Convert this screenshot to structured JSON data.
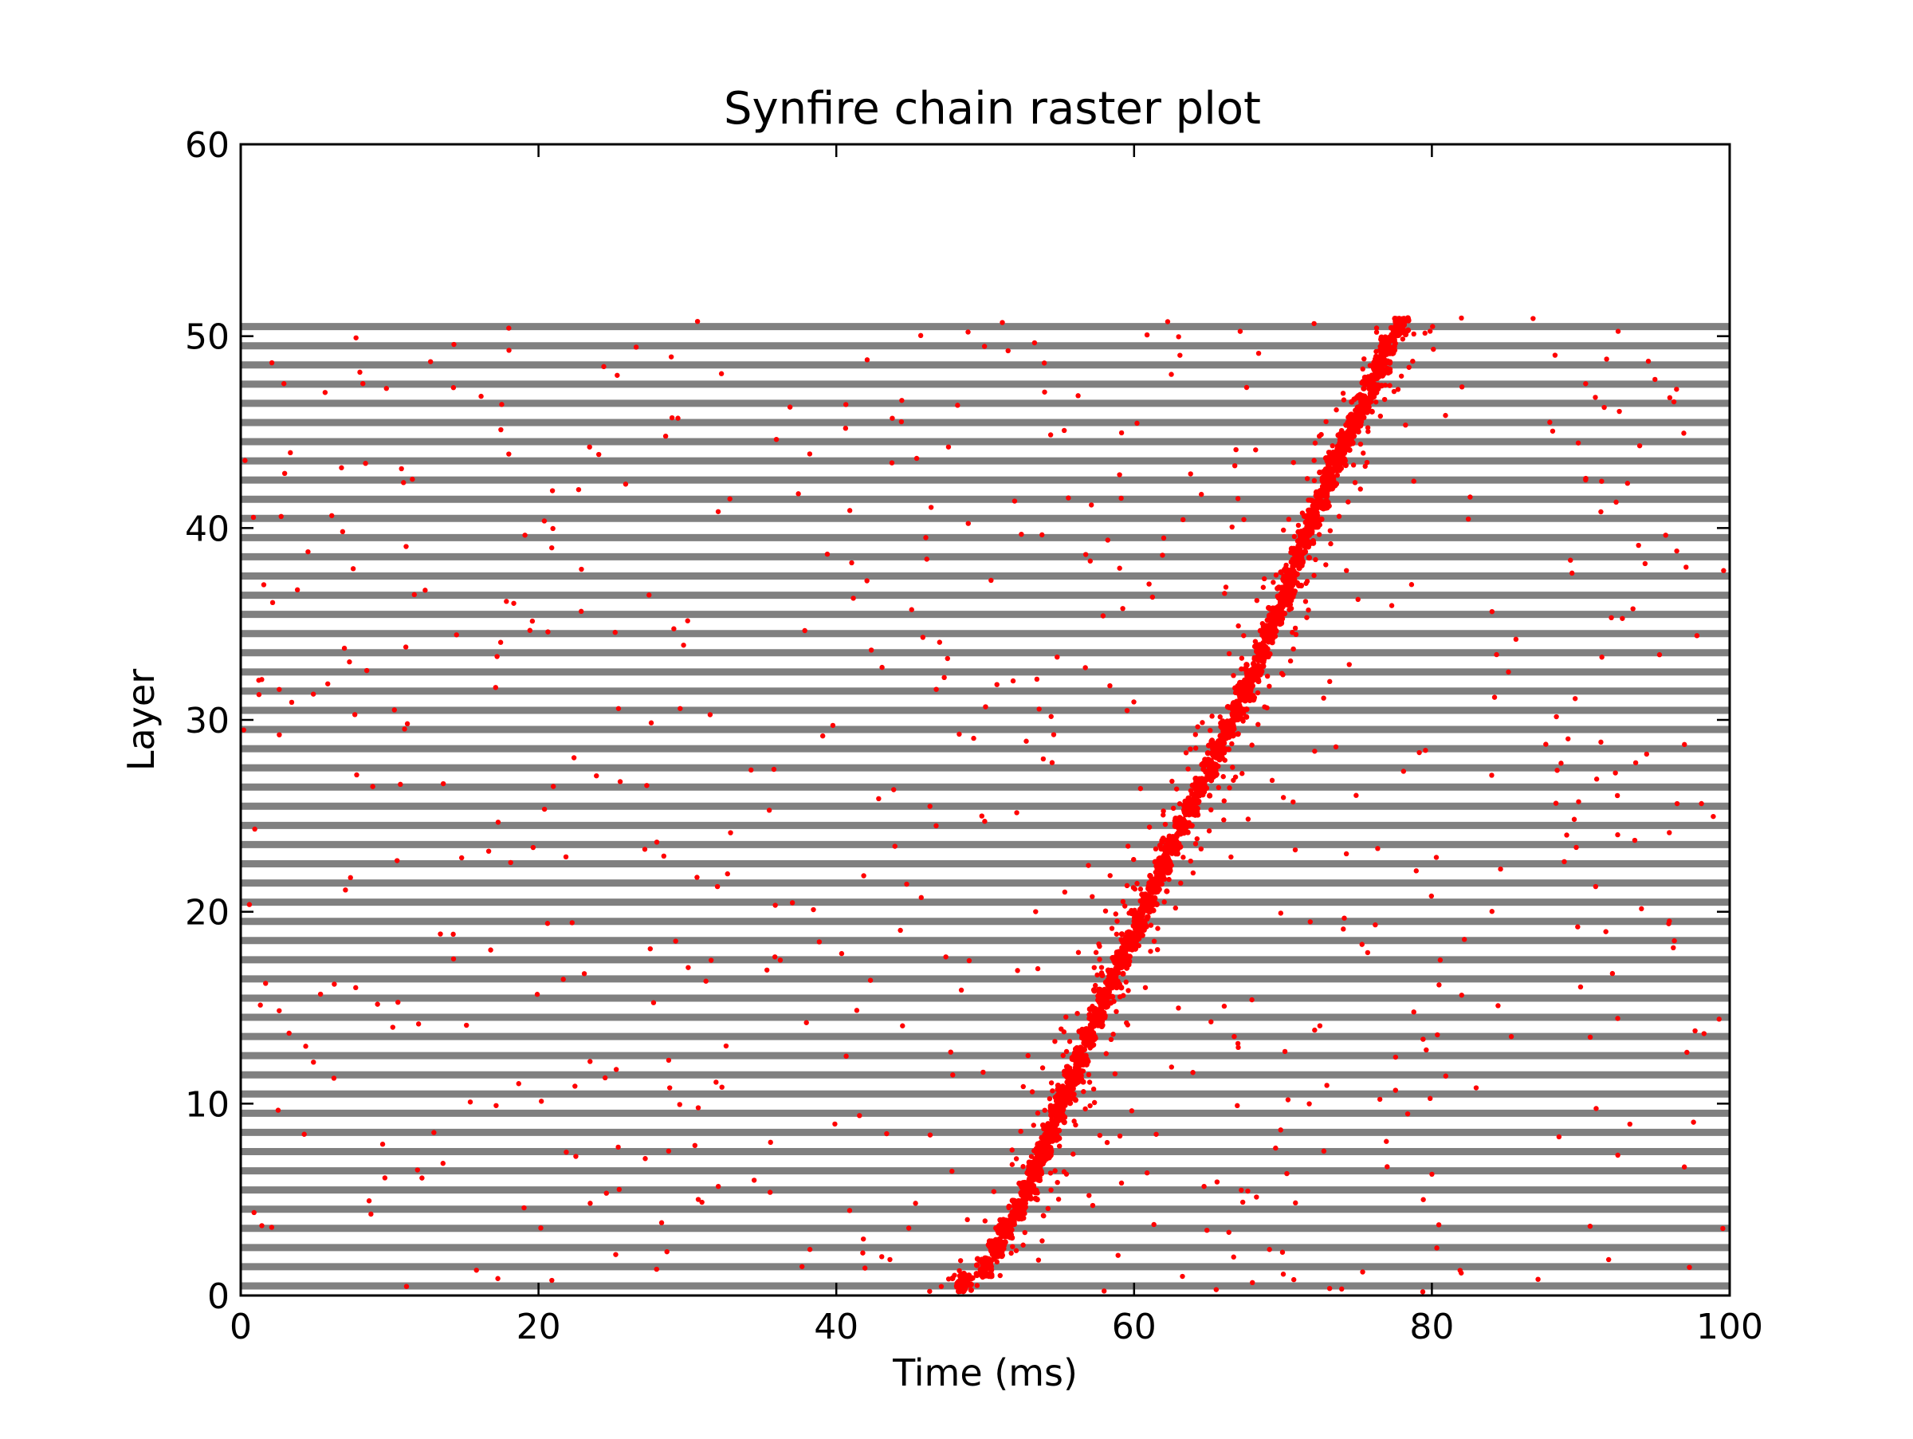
{
  "chart_data": {
    "type": "scatter",
    "title": "Synfire chain raster plot",
    "xlabel": "Time (ms)",
    "ylabel": "Layer",
    "xlim": [
      0,
      100
    ],
    "ylim": [
      0,
      60
    ],
    "xticks": [
      0,
      20,
      40,
      60,
      80,
      100
    ],
    "yticks": [
      0,
      10,
      20,
      30,
      40,
      50
    ],
    "grid": false,
    "legend": "none",
    "layer_bands": {
      "count": 51,
      "from_layer": 0,
      "to_layer": 50,
      "color": "#808080"
    },
    "series": [
      {
        "marker_color": "#ff0000",
        "pulse_points": [
          [
            48.5,
            0.2
          ],
          [
            50.0,
            1.0
          ],
          [
            50.8,
            2.0
          ],
          [
            51.4,
            3.0
          ],
          [
            52.1,
            4.0
          ],
          [
            52.8,
            5.0
          ],
          [
            53.3,
            6.0
          ],
          [
            53.9,
            7.0
          ],
          [
            54.4,
            8.0
          ],
          [
            54.9,
            9.0
          ],
          [
            55.4,
            10.0
          ],
          [
            55.9,
            11.0
          ],
          [
            56.4,
            12.0
          ],
          [
            56.9,
            13.0
          ],
          [
            57.5,
            14.0
          ],
          [
            58.0,
            15.0
          ],
          [
            58.6,
            16.0
          ],
          [
            59.2,
            17.0
          ],
          [
            59.8,
            18.0
          ],
          [
            60.3,
            19.0
          ],
          [
            60.9,
            20.0
          ],
          [
            61.5,
            21.0
          ],
          [
            62.0,
            22.0
          ],
          [
            62.5,
            23.0
          ],
          [
            63.1,
            24.0
          ],
          [
            63.8,
            25.0
          ],
          [
            64.5,
            26.0
          ],
          [
            65.1,
            27.0
          ],
          [
            65.7,
            28.0
          ],
          [
            66.3,
            29.0
          ],
          [
            66.9,
            30.0
          ],
          [
            67.5,
            31.0
          ],
          [
            68.0,
            32.0
          ],
          [
            68.6,
            33.0
          ],
          [
            69.1,
            34.0
          ],
          [
            69.6,
            35.0
          ],
          [
            70.1,
            36.0
          ],
          [
            70.5,
            37.0
          ],
          [
            71.0,
            38.0
          ],
          [
            71.5,
            39.0
          ],
          [
            72.0,
            40.0
          ],
          [
            72.5,
            41.0
          ],
          [
            73.0,
            42.0
          ],
          [
            73.6,
            43.0
          ],
          [
            74.2,
            44.0
          ],
          [
            74.8,
            45.0
          ],
          [
            75.4,
            46.0
          ],
          [
            76.0,
            47.0
          ],
          [
            76.6,
            48.0
          ],
          [
            77.1,
            49.0
          ],
          [
            77.8,
            50.0
          ]
        ],
        "background_rate_per_layer": 12,
        "time_range": [
          0,
          100
        ]
      }
    ]
  }
}
